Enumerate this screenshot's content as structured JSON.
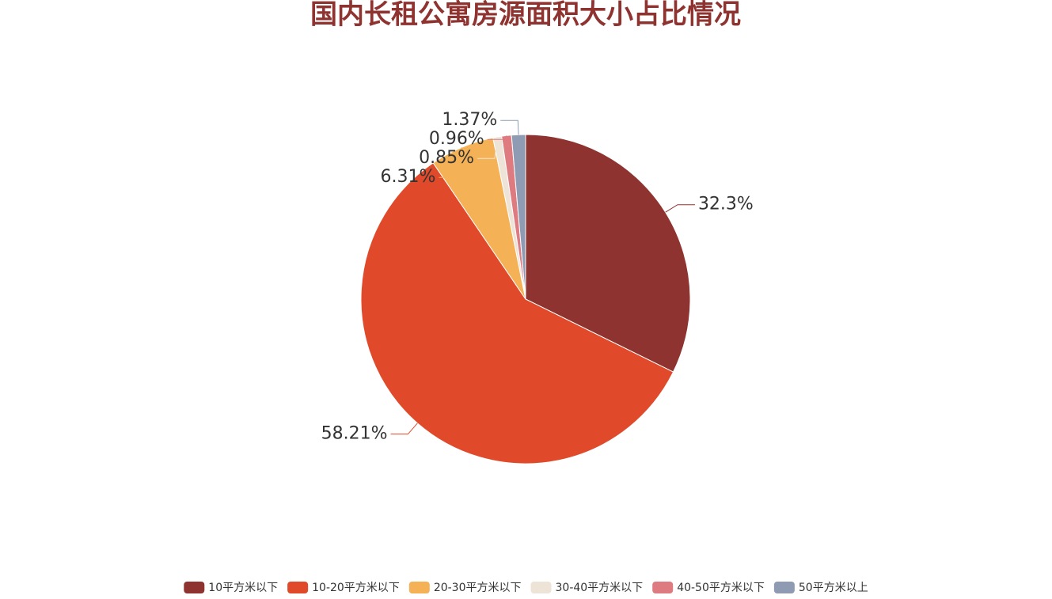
{
  "chart_data": {
    "type": "pie",
    "title": "国内长租公寓房源面积大小占比情况",
    "categories": [
      "10平方米以下",
      "10-20平方米以下",
      "20-30平方米以下",
      "30-40平方米以下",
      "40-50平方米以下",
      "50平方米以上"
    ],
    "values": [
      32.3,
      58.21,
      6.31,
      0.85,
      0.96,
      1.37
    ],
    "value_labels": [
      "32.3%",
      "58.21%",
      "6.31%",
      "0.85%",
      "0.96%",
      "1.37%"
    ],
    "colors": [
      "#8e3330",
      "#e04a2a",
      "#f5b155",
      "#ede3d6",
      "#dd7b80",
      "#8f9bb3"
    ],
    "legend": "bottom"
  }
}
